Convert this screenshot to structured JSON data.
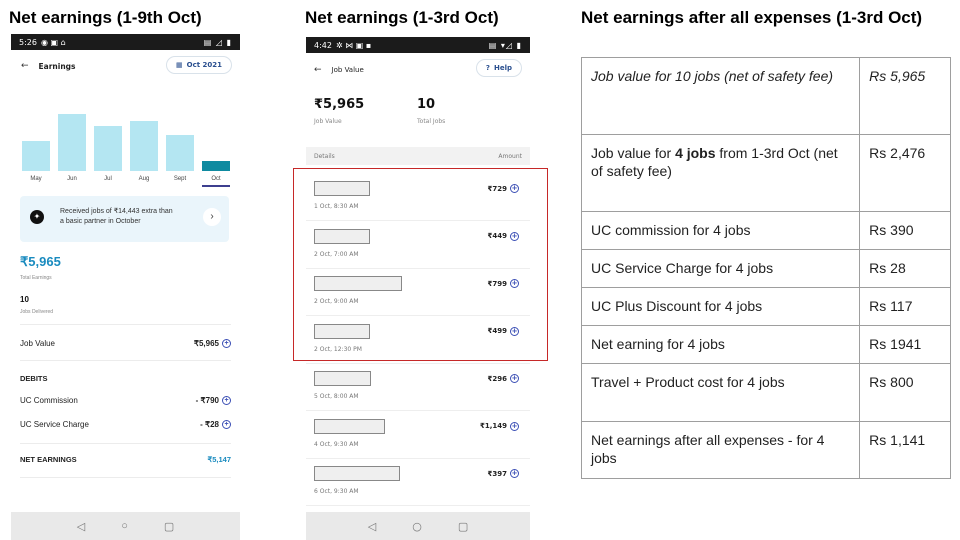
{
  "headings": {
    "phone1": "Net earnings (1-9th Oct)",
    "phone2": "Net earnings (1-3rd Oct)",
    "table": "Net earnings after all expenses (1-3rd Oct)"
  },
  "phone1": {
    "status_time": "5:26",
    "title": "Earnings",
    "month_pill": "Oct 2021",
    "chart_data": {
      "type": "bar",
      "categories": [
        "May",
        "Jun",
        "Jul",
        "Aug",
        "Sept",
        "Oct"
      ],
      "values": [
        0.5,
        0.95,
        0.75,
        0.83,
        0.6,
        0.17
      ],
      "selected": "Oct"
    },
    "promo_line1": "Received jobs of ₹14,443 extra than",
    "promo_line2": "a basic partner in October",
    "total_earnings": "₹5,965",
    "total_earnings_label": "Total Earnings",
    "jobs_delivered": "10",
    "jobs_delivered_label": "Jobs Delivered",
    "job_value_label": "Job Value",
    "job_value_amount": "₹5,965",
    "debits_label": "DEBITS",
    "uc_commission_label": "UC Commission",
    "uc_commission_amount": "- ₹790",
    "uc_service_label": "UC Service Charge",
    "uc_service_amount": "- ₹28",
    "net_earnings_label": "NET EARNINGS",
    "net_earnings_amount": "₹5,147"
  },
  "phone2": {
    "status_time": "4:42",
    "title": "Job Value",
    "help": "Help",
    "job_value": "₹5,965",
    "job_value_label": "Job Value",
    "total_jobs": "10",
    "total_jobs_label": "Total Jobs",
    "details_label": "Details",
    "amount_label": "Amount",
    "jobs": [
      {
        "date": "1 Oct, 8:30 AM",
        "amount": "₹729"
      },
      {
        "date": "2 Oct, 7:00 AM",
        "amount": "₹449"
      },
      {
        "date": "2 Oct, 9:00 AM",
        "amount": "₹799"
      },
      {
        "date": "2 Oct, 12:30 PM",
        "amount": "₹499"
      },
      {
        "date": "5 Oct, 8:00 AM",
        "amount": "₹296"
      },
      {
        "date": "4 Oct, 9:30 AM",
        "amount": "₹1,149"
      },
      {
        "date": "6 Oct, 9:30 AM",
        "amount": "₹397"
      }
    ]
  },
  "table": {
    "rows": [
      {
        "label": "Job value for 10 jobs (net of safety fee)",
        "value": "Rs 5,965"
      },
      {
        "label_pre": "Job value for ",
        "label_bold": "4 jobs",
        "label_post": " from 1-3rd Oct (net of safety fee)",
        "value": "Rs 2,476"
      },
      {
        "label": "UC commission for 4 jobs",
        "value": "Rs 390"
      },
      {
        "label": "UC Service Charge for 4 jobs",
        "value": "Rs 28"
      },
      {
        "label": "UC Plus Discount for 4 jobs",
        "value": "Rs 117"
      },
      {
        "label": "Net earning for 4 jobs",
        "value": "Rs 1941"
      },
      {
        "label": "Travel + Product cost for 4 jobs",
        "value": "Rs 800"
      },
      {
        "label": "Net earnings after all expenses - for 4 jobs",
        "value": "Rs 1,141"
      }
    ]
  }
}
